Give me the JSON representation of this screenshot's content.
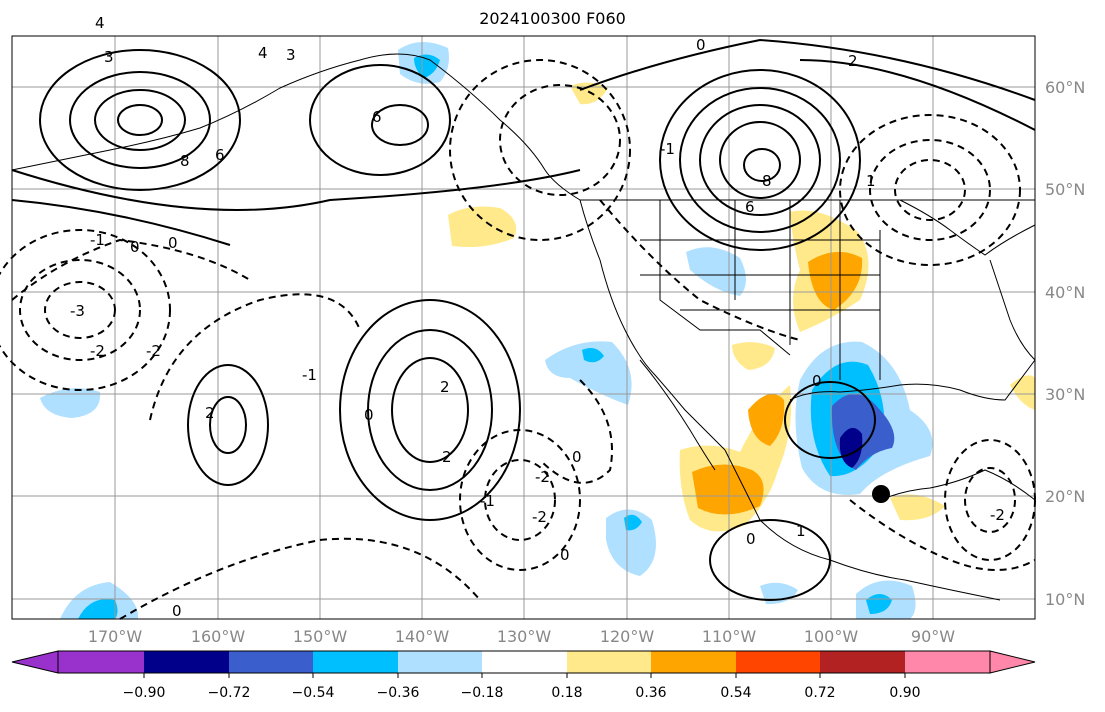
{
  "title": "2024100300 F060",
  "map": {
    "lat_labels": [
      "60°N",
      "50°N",
      "40°N",
      "30°N",
      "20°N",
      "10°N"
    ],
    "lon_labels": [
      "170°W",
      "160°W",
      "150°W",
      "140°W",
      "130°W",
      "120°W",
      "110°W",
      "100°W",
      "90°W"
    ],
    "contour_labels": [
      "3",
      "4",
      "6",
      "8",
      "6",
      "3",
      "4",
      "6",
      "8",
      "0",
      "2",
      "0",
      "0",
      "-1",
      "-3",
      "-2",
      "-2",
      "-1",
      "0",
      "2",
      "2",
      "2",
      "-2",
      "-1",
      "-2",
      "0",
      "0",
      "0",
      "1",
      "-1",
      "1",
      "-2",
      "0",
      "0"
    ],
    "colors": {
      "land_line": "#000000",
      "grid": "#999999",
      "axis_label": "#888888"
    }
  },
  "colorbar": {
    "ticks": [
      "−0.90",
      "−0.72",
      "−0.54",
      "−0.36",
      "−0.18",
      "0.18",
      "0.36",
      "0.54",
      "0.72",
      "0.90"
    ],
    "colors": [
      "#9932cc",
      "#00008b",
      "#3a5fcd",
      "#00bfff",
      "#b0e0ff",
      "#ffffff",
      "#ffe98a",
      "#ffa500",
      "#ff4500",
      "#b22222",
      "#ff88aa"
    ]
  }
}
